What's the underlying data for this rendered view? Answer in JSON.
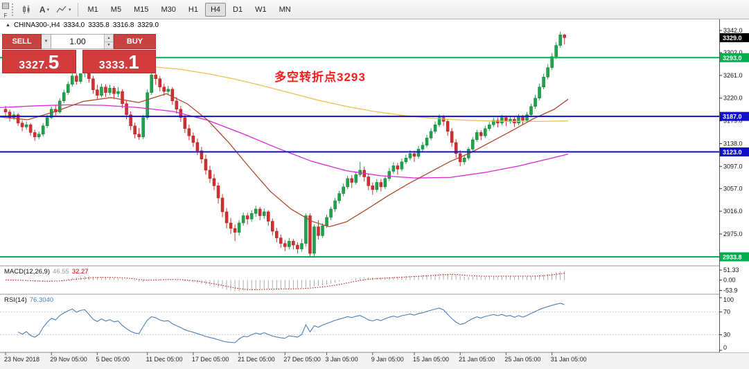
{
  "toolbar": {
    "f_label": "F",
    "tools": [
      {
        "name": "chart-type",
        "glyph": "candles",
        "caret": false
      },
      {
        "name": "text-tool",
        "glyph": "A",
        "caret": true
      },
      {
        "name": "line-studies",
        "glyph": "zigzag",
        "caret": true
      }
    ],
    "timeframes": [
      {
        "label": "M1",
        "active": false
      },
      {
        "label": "M5",
        "active": false
      },
      {
        "label": "M15",
        "active": false
      },
      {
        "label": "M30",
        "active": false
      },
      {
        "label": "H1",
        "active": false
      },
      {
        "label": "H4",
        "active": true
      },
      {
        "label": "D1",
        "active": false
      },
      {
        "label": "W1",
        "active": false
      },
      {
        "label": "MN",
        "active": false
      }
    ]
  },
  "trade_panel": {
    "sell_label": "SELL",
    "buy_label": "BUY",
    "volume": "1.00",
    "icons": {
      "caret": "▼",
      "up": "▲",
      "down": "▼"
    },
    "sell_price": {
      "main": "3327.",
      "big": "5"
    },
    "buy_price": {
      "main": "3333.",
      "big": "1"
    }
  },
  "chart": {
    "symbol": "CHINA300-,H4",
    "open": "3334.0",
    "high": "3335.8",
    "low": "3316.8",
    "close": "3329.0",
    "window_arrow": "▲",
    "annotation": {
      "text": "多空转折点3293",
      "color": "#FF1A1A"
    },
    "colors": {
      "up": "#1FA34D",
      "up_border": "#0E7A33",
      "down": "#D03030",
      "down_border": "#A82020",
      "ma_slow": "#F0C050",
      "ma_mid": "#D929D9",
      "ma_fast": "#B0482C",
      "level_green": "#00B050",
      "level_blue": "#1010C8",
      "current": "#000000"
    },
    "price_axis": {
      "ticks": [
        3342.0,
        3302.0,
        3261.0,
        3220.0,
        3179.0,
        3138.0,
        3097.0,
        3057.0,
        3016.0,
        2975.0
      ],
      "boxes": [
        {
          "value": "3329.0",
          "price": 3329.0,
          "type": "current"
        },
        {
          "value": "3293.0",
          "price": 3293.0,
          "type": "green"
        },
        {
          "value": "3187.0",
          "price": 3187.0,
          "type": "blue"
        },
        {
          "value": "3123.0",
          "price": 3123.0,
          "type": "blue"
        },
        {
          "value": "2933.8",
          "price": 2933.8,
          "type": "green"
        }
      ]
    },
    "levels": [
      {
        "price": 3293.0,
        "type": "green"
      },
      {
        "price": 3187.0,
        "type": "blue"
      },
      {
        "price": 3123.0,
        "type": "blue"
      },
      {
        "price": 2933.8,
        "type": "green"
      }
    ]
  },
  "macd": {
    "name": "MACD(12,26,9)",
    "value_main": "46.55",
    "value_signal": "32.27",
    "params": {
      "fast": 12,
      "slow": 26,
      "signal": 9
    },
    "axis": [
      {
        "label": "51.33",
        "value": 51.33
      },
      {
        "label": "0.00",
        "value": 0
      },
      {
        "label": "-53.9",
        "value": -53.9
      }
    ]
  },
  "rsi": {
    "name": "RSI(14)",
    "value": "76.3040",
    "period": 14,
    "levels": [
      70,
      30
    ],
    "axis": [
      {
        "label": "100",
        "value": 100
      },
      {
        "label": "70",
        "value": 70
      },
      {
        "label": "30",
        "value": 30
      },
      {
        "label": "0",
        "value": 0
      }
    ]
  },
  "time_axis": [
    {
      "label": "23 Nov 2018",
      "bar": 0
    },
    {
      "label": "29 Nov 05:00",
      "bar": 11
    },
    {
      "label": "5 Dec 05:00",
      "bar": 22
    },
    {
      "label": "11 Dec 05:00",
      "bar": 34
    },
    {
      "label": "17 Dec 05:00",
      "bar": 45
    },
    {
      "label": "21 Dec 05:00",
      "bar": 56
    },
    {
      "label": "27 Dec 05:00",
      "bar": 67
    },
    {
      "label": "3 Jan 05:00",
      "bar": 77
    },
    {
      "label": "9 Jan 05:00",
      "bar": 88
    },
    {
      "label": "15 Jan 05:00",
      "bar": 98
    },
    {
      "label": "21 Jan 05:00",
      "bar": 109
    },
    {
      "label": "25 Jan 05:00",
      "bar": 120
    },
    {
      "label": "31 Jan 05:00",
      "bar": 131
    }
  ],
  "chart_data": {
    "type": "candlestick",
    "symbol": "CHINA300-",
    "timeframe": "H4",
    "price_range": {
      "top": 3342.0,
      "bottom": 2933.8
    },
    "candles": [
      [
        3200,
        3206,
        3188,
        3195
      ],
      [
        3195,
        3199,
        3178,
        3185
      ],
      [
        3185,
        3196,
        3181,
        3190
      ],
      [
        3190,
        3193,
        3170,
        3175
      ],
      [
        3175,
        3180,
        3160,
        3168
      ],
      [
        3168,
        3178,
        3163,
        3172
      ],
      [
        3172,
        3175,
        3152,
        3158
      ],
      [
        3158,
        3163,
        3143,
        3150
      ],
      [
        3150,
        3160,
        3146,
        3155
      ],
      [
        3155,
        3175,
        3151,
        3170
      ],
      [
        3170,
        3190,
        3166,
        3185
      ],
      [
        3185,
        3205,
        3182,
        3200
      ],
      [
        3200,
        3208,
        3188,
        3195
      ],
      [
        3195,
        3220,
        3192,
        3215
      ],
      [
        3215,
        3235,
        3211,
        3230
      ],
      [
        3230,
        3250,
        3226,
        3245
      ],
      [
        3245,
        3267,
        3241,
        3260
      ],
      [
        3260,
        3266,
        3244,
        3250
      ],
      [
        3250,
        3270,
        3246,
        3265
      ],
      [
        3265,
        3280,
        3258,
        3270
      ],
      [
        3270,
        3276,
        3248,
        3255
      ],
      [
        3255,
        3260,
        3228,
        3235
      ],
      [
        3235,
        3244,
        3218,
        3225
      ],
      [
        3225,
        3246,
        3221,
        3240
      ],
      [
        3240,
        3245,
        3222,
        3230
      ],
      [
        3230,
        3244,
        3226,
        3238
      ],
      [
        3238,
        3242,
        3220,
        3228
      ],
      [
        3228,
        3240,
        3222,
        3232
      ],
      [
        3232,
        3236,
        3202,
        3210
      ],
      [
        3210,
        3216,
        3182,
        3190
      ],
      [
        3190,
        3196,
        3162,
        3170
      ],
      [
        3170,
        3176,
        3147,
        3155
      ],
      [
        3155,
        3166,
        3145,
        3150
      ],
      [
        3150,
        3190,
        3146,
        3185
      ],
      [
        3185,
        3236,
        3181,
        3230
      ],
      [
        3230,
        3270,
        3226,
        3262
      ],
      [
        3262,
        3272,
        3244,
        3255
      ],
      [
        3255,
        3260,
        3232,
        3240
      ],
      [
        3240,
        3246,
        3224,
        3232
      ],
      [
        3232,
        3242,
        3226,
        3236
      ],
      [
        3236,
        3240,
        3208,
        3215
      ],
      [
        3215,
        3222,
        3192,
        3200
      ],
      [
        3200,
        3206,
        3177,
        3185
      ],
      [
        3185,
        3190,
        3157,
        3165
      ],
      [
        3165,
        3172,
        3144,
        3152
      ],
      [
        3152,
        3158,
        3132,
        3140
      ],
      [
        3140,
        3147,
        3117,
        3125
      ],
      [
        3125,
        3132,
        3102,
        3110
      ],
      [
        3110,
        3118,
        3082,
        3090
      ],
      [
        3090,
        3098,
        3067,
        3075
      ],
      [
        3075,
        3083,
        3054,
        3062
      ],
      [
        3062,
        3068,
        3030,
        3040
      ],
      [
        3040,
        3047,
        3005,
        3015
      ],
      [
        3015,
        3022,
        2985,
        2995
      ],
      [
        2995,
        3004,
        2975,
        2985
      ],
      [
        2985,
        2992,
        2962,
        2978
      ],
      [
        2978,
        3000,
        2972,
        2995
      ],
      [
        2995,
        3014,
        2990,
        3008
      ],
      [
        3008,
        3013,
        2992,
        3002
      ],
      [
        3002,
        3018,
        2997,
        3012
      ],
      [
        3012,
        3026,
        3006,
        3020
      ],
      [
        3020,
        3024,
        3000,
        3008
      ],
      [
        3008,
        3021,
        3002,
        3015
      ],
      [
        3015,
        3018,
        2990,
        2998
      ],
      [
        2998,
        3003,
        2972,
        2980
      ],
      [
        2980,
        2986,
        2960,
        2968
      ],
      [
        2968,
        2974,
        2950,
        2958
      ],
      [
        2958,
        2964,
        2944,
        2952
      ],
      [
        2952,
        2968,
        2947,
        2962
      ],
      [
        2962,
        2966,
        2947,
        2955
      ],
      [
        2955,
        2960,
        2940,
        2948
      ],
      [
        2948,
        2966,
        2943,
        2958
      ],
      [
        2958,
        3012,
        2952,
        3008
      ],
      [
        3008,
        3012,
        2934,
        2940
      ],
      [
        2940,
        2992,
        2935,
        2988
      ],
      [
        2988,
        3000,
        2965,
        2972
      ],
      [
        2972,
        2994,
        2968,
        2990
      ],
      [
        2990,
        3010,
        2986,
        3005
      ],
      [
        3005,
        3024,
        3000,
        3020
      ],
      [
        3020,
        3040,
        3015,
        3035
      ],
      [
        3035,
        3053,
        3030,
        3048
      ],
      [
        3048,
        3066,
        3043,
        3060
      ],
      [
        3060,
        3080,
        3056,
        3075
      ],
      [
        3075,
        3081,
        3058,
        3068
      ],
      [
        3068,
        3088,
        3064,
        3082
      ],
      [
        3082,
        3105,
        3078,
        3090
      ],
      [
        3090,
        3096,
        3070,
        3078
      ],
      [
        3078,
        3084,
        3054,
        3062
      ],
      [
        3062,
        3068,
        3046,
        3055
      ],
      [
        3055,
        3074,
        3050,
        3068
      ],
      [
        3068,
        3074,
        3052,
        3060
      ],
      [
        3060,
        3080,
        3056,
        3075
      ],
      [
        3075,
        3094,
        3071,
        3088
      ],
      [
        3088,
        3104,
        3084,
        3098
      ],
      [
        3098,
        3103,
        3082,
        3092
      ],
      [
        3092,
        3111,
        3088,
        3105
      ],
      [
        3105,
        3118,
        3101,
        3112
      ],
      [
        3112,
        3126,
        3108,
        3120
      ],
      [
        3120,
        3125,
        3105,
        3115
      ],
      [
        3115,
        3134,
        3111,
        3128
      ],
      [
        3128,
        3141,
        3124,
        3135
      ],
      [
        3135,
        3154,
        3131,
        3148
      ],
      [
        3148,
        3166,
        3144,
        3160
      ],
      [
        3160,
        3178,
        3156,
        3172
      ],
      [
        3172,
        3191,
        3168,
        3185
      ],
      [
        3185,
        3190,
        3170,
        3178
      ],
      [
        3178,
        3183,
        3152,
        3160
      ],
      [
        3160,
        3166,
        3132,
        3140
      ],
      [
        3140,
        3146,
        3112,
        3120
      ],
      [
        3120,
        3126,
        3097,
        3105
      ],
      [
        3105,
        3118,
        3100,
        3112
      ],
      [
        3112,
        3132,
        3108,
        3128
      ],
      [
        3128,
        3150,
        3124,
        3145
      ],
      [
        3145,
        3163,
        3141,
        3158
      ],
      [
        3158,
        3162,
        3144,
        3152
      ],
      [
        3152,
        3170,
        3148,
        3165
      ],
      [
        3165,
        3177,
        3161,
        3172
      ],
      [
        3172,
        3185,
        3168,
        3180
      ],
      [
        3180,
        3185,
        3167,
        3175
      ],
      [
        3175,
        3190,
        3171,
        3185
      ],
      [
        3185,
        3189,
        3170,
        3178
      ],
      [
        3178,
        3187,
        3174,
        3182
      ],
      [
        3182,
        3186,
        3168,
        3175
      ],
      [
        3175,
        3191,
        3171,
        3186
      ],
      [
        3186,
        3190,
        3172,
        3180
      ],
      [
        3180,
        3195,
        3176,
        3190
      ],
      [
        3190,
        3210,
        3186,
        3205
      ],
      [
        3205,
        3226,
        3201,
        3220
      ],
      [
        3220,
        3246,
        3216,
        3240
      ],
      [
        3240,
        3264,
        3236,
        3258
      ],
      [
        3258,
        3281,
        3254,
        3275
      ],
      [
        3275,
        3301,
        3271,
        3295
      ],
      [
        3295,
        3321,
        3291,
        3315
      ],
      [
        3315,
        3340,
        3311,
        3334
      ],
      [
        3334,
        3335.8,
        3316.8,
        3329
      ]
    ],
    "moving_averages": [
      {
        "name": "slow",
        "color_key": "ma_slow",
        "points": [
          [
            150,
            3285
          ],
          [
            225,
            3276
          ],
          [
            260,
            3272
          ],
          [
            300,
            3264
          ],
          [
            340,
            3254
          ],
          [
            380,
            3242
          ],
          [
            420,
            3229
          ],
          [
            460,
            3216
          ],
          [
            500,
            3205
          ],
          [
            540,
            3196
          ],
          [
            580,
            3189
          ],
          [
            620,
            3184
          ],
          [
            660,
            3181
          ],
          [
            700,
            3179
          ],
          [
            740,
            3178
          ],
          [
            780,
            3178
          ],
          [
            820,
            3179
          ]
        ]
      },
      {
        "name": "mid",
        "color_key": "ma_mid",
        "points": [
          [
            0,
            3203
          ],
          [
            50,
            3206
          ],
          [
            100,
            3208
          ],
          [
            150,
            3207
          ],
          [
            200,
            3203
          ],
          [
            250,
            3196
          ],
          [
            300,
            3180
          ],
          [
            350,
            3156
          ],
          [
            400,
            3130
          ],
          [
            450,
            3106
          ],
          [
            500,
            3089
          ],
          [
            550,
            3080
          ],
          [
            600,
            3076
          ],
          [
            650,
            3077
          ],
          [
            700,
            3086
          ],
          [
            750,
            3098
          ],
          [
            790,
            3110
          ],
          [
            820,
            3119
          ]
        ]
      },
      {
        "name": "fast",
        "color_key": "ma_fast",
        "points": [
          [
            0,
            3186
          ],
          [
            40,
            3181
          ],
          [
            80,
            3196
          ],
          [
            120,
            3214
          ],
          [
            160,
            3221
          ],
          [
            200,
            3212
          ],
          [
            240,
            3228
          ],
          [
            270,
            3210
          ],
          [
            300,
            3180
          ],
          [
            330,
            3140
          ],
          [
            360,
            3095
          ],
          [
            390,
            3052
          ],
          [
            420,
            3020
          ],
          [
            450,
            2998
          ],
          [
            475,
            2988
          ],
          [
            500,
            2997
          ],
          [
            530,
            3020
          ],
          [
            560,
            3044
          ],
          [
            590,
            3066
          ],
          [
            620,
            3086
          ],
          [
            650,
            3106
          ],
          [
            680,
            3122
          ],
          [
            710,
            3142
          ],
          [
            740,
            3162
          ],
          [
            770,
            3183
          ],
          [
            800,
            3200
          ],
          [
            820,
            3218
          ]
        ]
      }
    ]
  }
}
